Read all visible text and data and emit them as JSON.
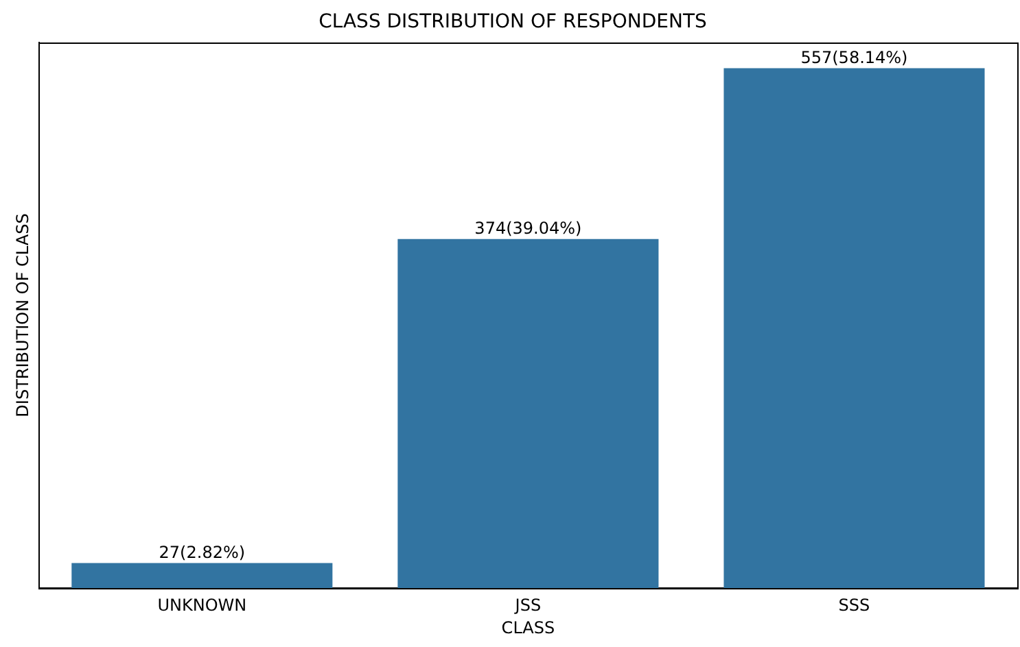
{
  "chart_data": {
    "type": "bar",
    "title": "CLASS DISTRIBUTION OF RESPONDENTS",
    "xlabel": "CLASS",
    "ylabel": "DISTRIBUTION OF CLASS",
    "categories": [
      "UNKNOWN",
      "JSS",
      "SSS"
    ],
    "values": [
      27,
      374,
      557
    ],
    "value_labels": [
      "27(2.82%)",
      "374(39.04%)",
      "557(58.14%)"
    ],
    "color": "#3274a1",
    "ylim": [
      0,
      584.85
    ],
    "tick_labels": "x",
    "grid": false,
    "legend": false
  }
}
